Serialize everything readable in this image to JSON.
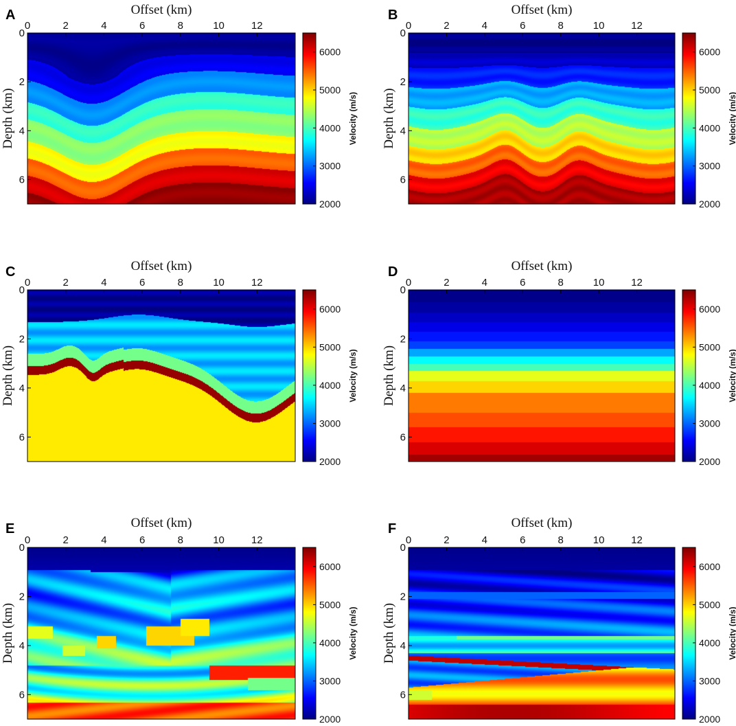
{
  "figure": {
    "colorbar": {
      "min": 2000,
      "max": 6500,
      "ticks": [
        2000,
        3000,
        4000,
        5000,
        6000
      ],
      "label": "Velocity (m/s)",
      "colormap": "jet"
    }
  },
  "chart_data": [
    {
      "panel": "A",
      "type": "heatmap",
      "xlabel": "Offset (km)",
      "ylabel": "Depth (km)",
      "colorbar_label": "Velocity (m/s)",
      "xlim": [
        0,
        14
      ],
      "ylim": [
        7,
        0
      ],
      "xticks": [
        0,
        2,
        4,
        6,
        8,
        10,
        12
      ],
      "yticks": [
        0,
        2,
        4,
        6
      ],
      "cbar_ticks": [
        2000,
        3000,
        4000,
        5000,
        6000
      ],
      "description_model": "folded",
      "structure": {
        "syncline_center_km": 3.4,
        "syncline_amp_km": 1.1,
        "anticline_center_km": 9.5,
        "anticline_amp_km": -0.3,
        "bands": [
          [
            0,
            2100
          ],
          [
            1.0,
            2500
          ],
          [
            1.8,
            3200
          ],
          [
            2.7,
            3900
          ],
          [
            3.4,
            4300
          ],
          [
            4.3,
            4800
          ],
          [
            5.0,
            5500
          ],
          [
            5.7,
            6100
          ],
          [
            6.4,
            6400
          ]
        ]
      }
    },
    {
      "panel": "B",
      "type": "heatmap",
      "xlabel": "Offset (km)",
      "ylabel": "Depth (km)",
      "colorbar_label": "Velocity (m/s)",
      "xlim": [
        0,
        14
      ],
      "ylim": [
        7,
        0
      ],
      "xticks": [
        0,
        2,
        4,
        6,
        8,
        10,
        12
      ],
      "yticks": [
        0,
        2,
        4,
        6
      ],
      "cbar_ticks": [
        2000,
        3000,
        4000,
        5000,
        6000
      ],
      "description_model": "wavy layered",
      "structure": {
        "bumps_km": [
          5.2,
          8.8
        ],
        "bands": [
          [
            0,
            2050
          ],
          [
            0.8,
            2300
          ],
          [
            1.4,
            2700
          ],
          [
            2.2,
            3300
          ],
          [
            3.0,
            3900
          ],
          [
            3.8,
            4500
          ],
          [
            4.6,
            5000
          ],
          [
            5.2,
            5500
          ],
          [
            5.8,
            6000
          ],
          [
            6.4,
            6300
          ]
        ]
      }
    },
    {
      "panel": "C",
      "type": "heatmap",
      "xlabel": "Offset (km)",
      "ylabel": "Depth (km)",
      "colorbar_label": "Velocity (m/s)",
      "xlim": [
        0,
        14
      ],
      "ylim": [
        7,
        0
      ],
      "xticks": [
        0,
        2,
        4,
        6,
        8,
        10,
        12
      ],
      "yticks": [
        0,
        2,
        4,
        6
      ],
      "cbar_ticks": [
        2000,
        3000,
        4000,
        5000,
        6000
      ],
      "description_model": "salt-like reflector",
      "structure": {
        "top_layer_v": 2100,
        "middle_layer_v": 3400,
        "thin_layer_v": 4200,
        "red_layer_v": 6400,
        "bottom_v": 4900
      }
    },
    {
      "panel": "D",
      "type": "heatmap",
      "xlabel": "Offset (km)",
      "ylabel": "Depth (km)",
      "colorbar_label": "Velocity (m/s)",
      "xlim": [
        0,
        14
      ],
      "ylim": [
        7,
        0
      ],
      "xticks": [
        0,
        2,
        4,
        6,
        8,
        10,
        12
      ],
      "yticks": [
        0,
        2,
        4,
        6
      ],
      "cbar_ticks": [
        2000,
        3000,
        4000,
        5000,
        6000
      ],
      "description_model": "horizontal layered",
      "structure": {
        "layers": [
          [
            0,
            2050
          ],
          [
            0.5,
            2150
          ],
          [
            0.9,
            2300
          ],
          [
            1.3,
            2450
          ],
          [
            1.7,
            2650
          ],
          [
            2.1,
            2850
          ],
          [
            2.4,
            3300
          ],
          [
            2.7,
            3700
          ],
          [
            3.0,
            4000
          ],
          [
            3.3,
            4700
          ],
          [
            3.7,
            5000
          ],
          [
            4.2,
            5400
          ],
          [
            5.0,
            5600
          ],
          [
            5.6,
            5850
          ],
          [
            6.2,
            6100
          ],
          [
            6.7,
            6350
          ]
        ]
      }
    },
    {
      "panel": "E",
      "type": "heatmap",
      "xlabel": "Offset (km)",
      "ylabel": "Depth (km)",
      "colorbar_label": "Velocity (m/s)",
      "xlim": [
        0,
        14
      ],
      "ylim": [
        7,
        0
      ],
      "xticks": [
        0,
        2,
        4,
        6,
        8,
        10,
        12
      ],
      "yticks": [
        0,
        2,
        4,
        6
      ],
      "cbar_ticks": [
        2000,
        3000,
        4000,
        5000,
        6000
      ],
      "description_model": "faulted (Marmousi-like)"
    },
    {
      "panel": "F",
      "type": "heatmap",
      "xlabel": "Offset (km)",
      "ylabel": "Depth (km)",
      "colorbar_label": "Velocity (m/s)",
      "xlim": [
        0,
        14
      ],
      "ylim": [
        7,
        0
      ],
      "xticks": [
        0,
        2,
        4,
        6,
        8,
        10,
        12
      ],
      "yticks": [
        0,
        2,
        4,
        6
      ],
      "cbar_ticks": [
        2000,
        3000,
        4000,
        5000,
        6000
      ],
      "description_model": "wedge/pinch-out layered"
    }
  ]
}
